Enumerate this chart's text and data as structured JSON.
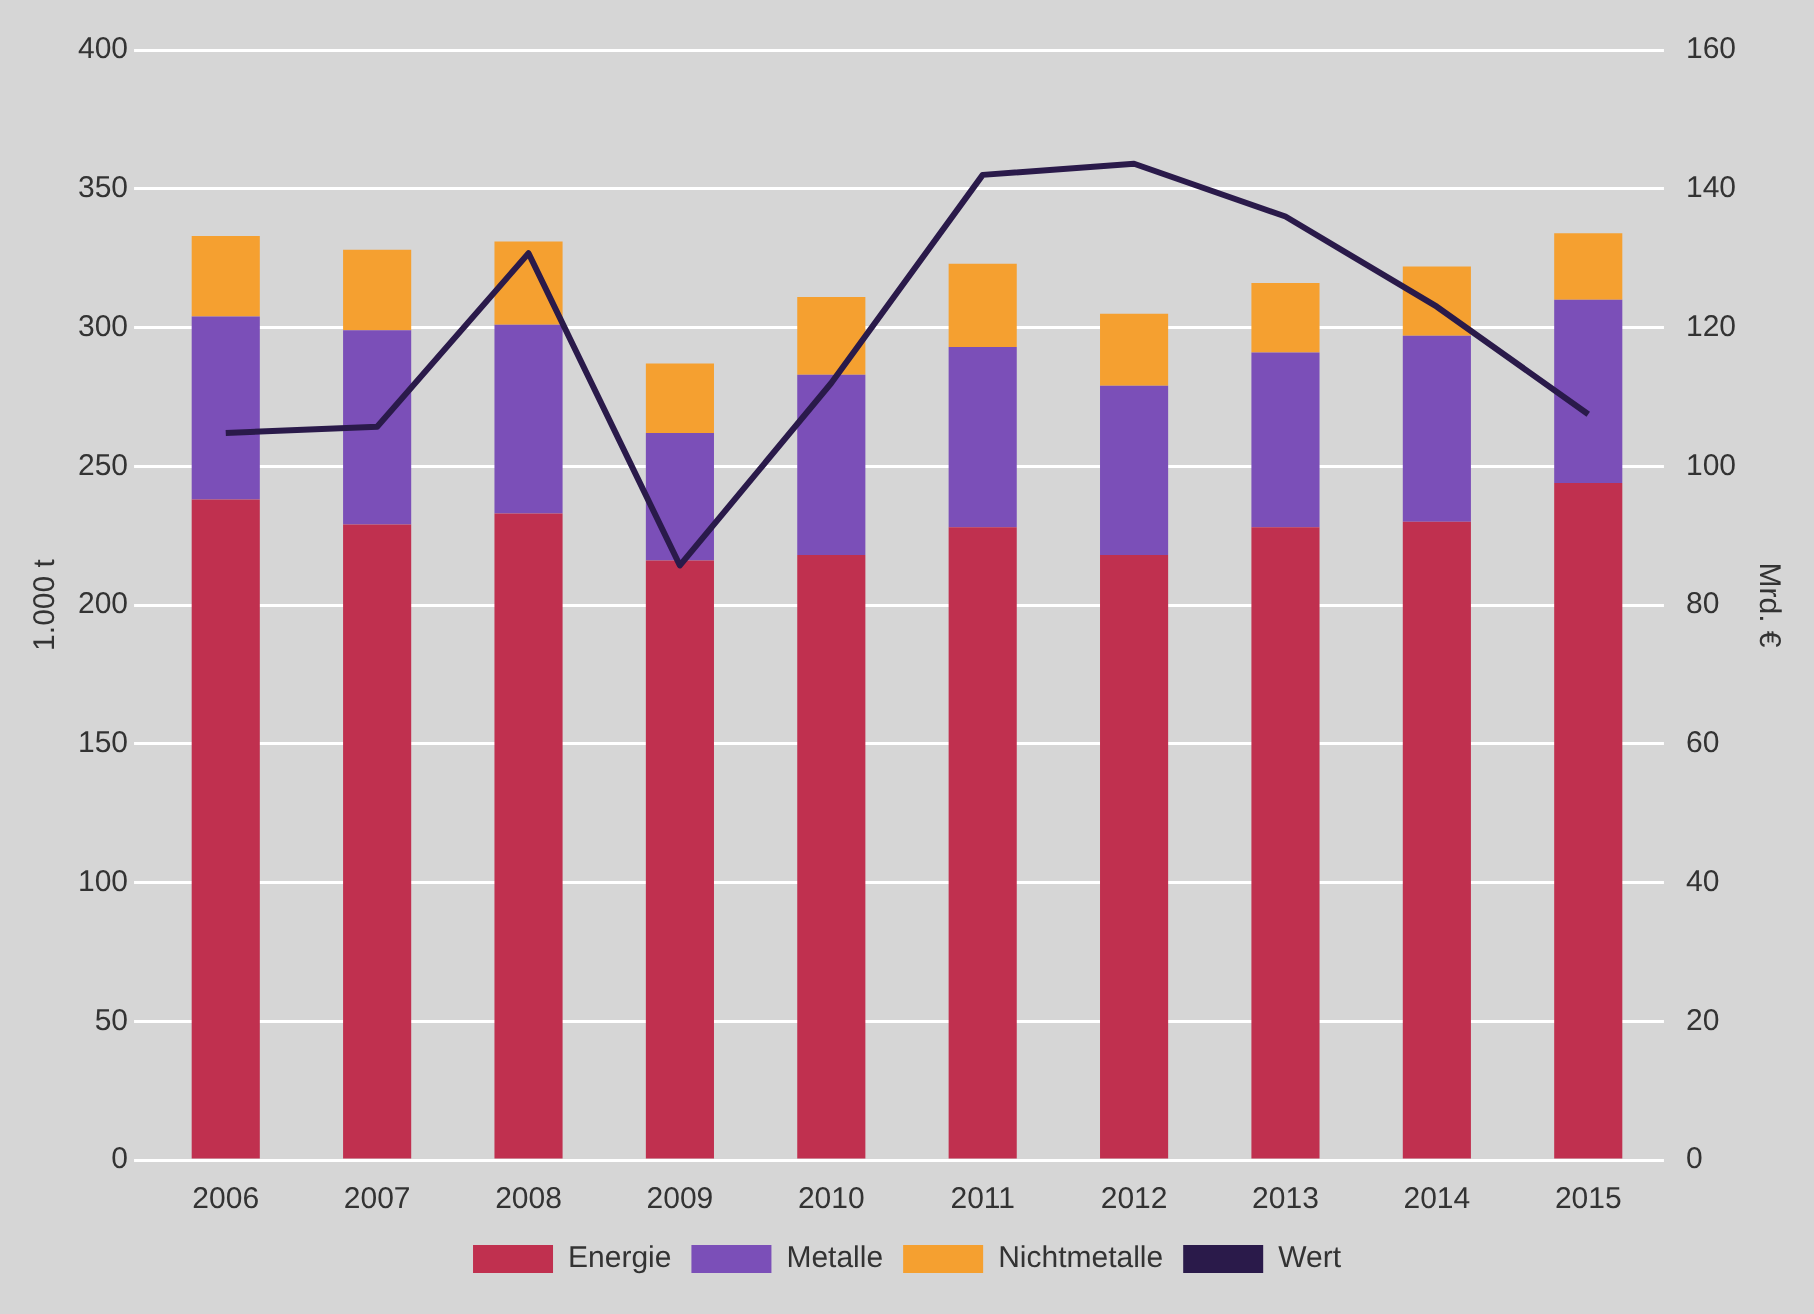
{
  "chart_data": {
    "type": "bar",
    "stacked": true,
    "ylabel": "1.000 t",
    "y2label": "Mrd. €",
    "categories": [
      "2006",
      "2007",
      "2008",
      "2009",
      "2010",
      "2011",
      "2012",
      "2013",
      "2014",
      "2015"
    ],
    "series": [
      {
        "name": "Energie",
        "color": "#c0304f",
        "values": [
          238,
          229,
          233,
          216,
          218,
          228,
          218,
          228,
          230,
          244
        ]
      },
      {
        "name": "Metalle",
        "color": "#7b4fb8",
        "values": [
          66,
          70,
          68,
          46,
          65,
          65,
          61,
          63,
          67,
          66
        ]
      },
      {
        "name": "Nichtmetalle",
        "color": "#f5a030",
        "values": [
          29,
          29,
          30,
          25,
          28,
          30,
          26,
          25,
          25,
          24
        ]
      },
      {
        "name": "Wert",
        "type": "line",
        "axis": "y2",
        "color": "#2a1a4a",
        "values": [
          104.8,
          105.7,
          130.7,
          85.7,
          112,
          142,
          143.6,
          136,
          123,
          107.5
        ]
      }
    ],
    "ylim": [
      0,
      400
    ],
    "yticks": [
      0,
      50,
      100,
      150,
      200,
      250,
      300,
      350,
      400
    ],
    "y2lim": [
      0,
      160
    ],
    "y2ticks": [
      0,
      20,
      40,
      60,
      80,
      100,
      120,
      140,
      160
    ],
    "grid": "y",
    "legend": "bottom",
    "marker": "none"
  }
}
